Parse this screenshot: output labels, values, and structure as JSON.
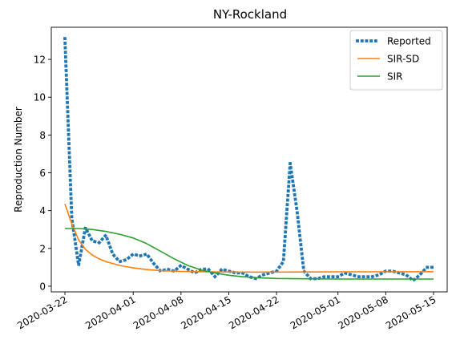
{
  "chart_data": {
    "type": "line",
    "title": "NY-Rockland",
    "xlabel": "",
    "ylabel": "Reproduction Number",
    "x_ticks": [
      "2020-03-22",
      "2020-04-01",
      "2020-04-08",
      "2020-04-15",
      "2020-04-22",
      "2020-05-01",
      "2020-05-08",
      "2020-05-15"
    ],
    "y_ticks": [
      "0",
      "2",
      "4",
      "6",
      "8",
      "10",
      "12"
    ],
    "x_range": [
      "2020-03-20",
      "2020-05-17"
    ],
    "ylim": [
      -0.3,
      13.7
    ],
    "legend_position": "top-right",
    "grid": false,
    "series": [
      {
        "name": "Reported",
        "color": "#1f77b4",
        "style": "dotted",
        "x": [
          "2020-03-22",
          "2020-03-23",
          "2020-03-24",
          "2020-03-25",
          "2020-03-26",
          "2020-03-27",
          "2020-03-28",
          "2020-03-29",
          "2020-03-30",
          "2020-03-31",
          "2020-04-01",
          "2020-04-02",
          "2020-04-03",
          "2020-04-04",
          "2020-04-05",
          "2020-04-06",
          "2020-04-07",
          "2020-04-08",
          "2020-04-09",
          "2020-04-10",
          "2020-04-11",
          "2020-04-12",
          "2020-04-13",
          "2020-04-14",
          "2020-04-15",
          "2020-04-16",
          "2020-04-17",
          "2020-04-18",
          "2020-04-19",
          "2020-04-20",
          "2020-04-21",
          "2020-04-22",
          "2020-04-23",
          "2020-04-24",
          "2020-04-25",
          "2020-04-26",
          "2020-04-27",
          "2020-04-28",
          "2020-04-29",
          "2020-04-30",
          "2020-05-01",
          "2020-05-02",
          "2020-05-03",
          "2020-05-04",
          "2020-05-05",
          "2020-05-06",
          "2020-05-07",
          "2020-05-08",
          "2020-05-09",
          "2020-05-10",
          "2020-05-11",
          "2020-05-12",
          "2020-05-13",
          "2020-05-14",
          "2020-05-15"
        ],
        "y": [
          13.1,
          3.6,
          1.1,
          3.1,
          2.4,
          2.3,
          2.7,
          1.7,
          1.3,
          1.4,
          1.7,
          1.6,
          1.7,
          1.2,
          0.8,
          0.9,
          0.8,
          1.1,
          0.9,
          0.7,
          0.9,
          0.9,
          0.5,
          0.9,
          0.8,
          0.7,
          0.7,
          0.5,
          0.4,
          0.6,
          0.7,
          0.8,
          1.3,
          6.5,
          4.0,
          0.8,
          0.4,
          0.4,
          0.5,
          0.5,
          0.5,
          0.7,
          0.6,
          0.5,
          0.5,
          0.5,
          0.6,
          0.8,
          0.8,
          0.7,
          0.6,
          0.3,
          0.6,
          1.0,
          1.0
        ]
      },
      {
        "name": "SIR-SD",
        "color": "#ff7f0e",
        "style": "solid",
        "x": [
          "2020-03-22",
          "2020-03-23",
          "2020-03-24",
          "2020-03-25",
          "2020-03-26",
          "2020-03-27",
          "2020-03-28",
          "2020-03-29",
          "2020-03-30",
          "2020-03-31",
          "2020-04-01",
          "2020-04-03",
          "2020-04-05",
          "2020-04-08",
          "2020-04-12",
          "2020-04-17",
          "2020-04-22",
          "2020-05-01",
          "2020-05-08",
          "2020-05-15"
        ],
        "y": [
          4.35,
          3.3,
          2.45,
          1.95,
          1.65,
          1.45,
          1.3,
          1.2,
          1.1,
          1.03,
          0.97,
          0.88,
          0.82,
          0.78,
          0.76,
          0.75,
          0.75,
          0.76,
          0.76,
          0.77
        ]
      },
      {
        "name": "SIR",
        "color": "#2ca02c",
        "style": "solid",
        "x": [
          "2020-03-22",
          "2020-03-24",
          "2020-03-26",
          "2020-03-28",
          "2020-03-30",
          "2020-04-01",
          "2020-04-03",
          "2020-04-05",
          "2020-04-07",
          "2020-04-09",
          "2020-04-11",
          "2020-04-13",
          "2020-04-15",
          "2020-04-17",
          "2020-04-19",
          "2020-04-22",
          "2020-04-26",
          "2020-05-01",
          "2020-05-08",
          "2020-05-15"
        ],
        "y": [
          3.05,
          3.05,
          3.0,
          2.9,
          2.75,
          2.55,
          2.25,
          1.85,
          1.45,
          1.1,
          0.85,
          0.7,
          0.58,
          0.5,
          0.45,
          0.41,
          0.39,
          0.38,
          0.38,
          0.38
        ]
      }
    ]
  }
}
